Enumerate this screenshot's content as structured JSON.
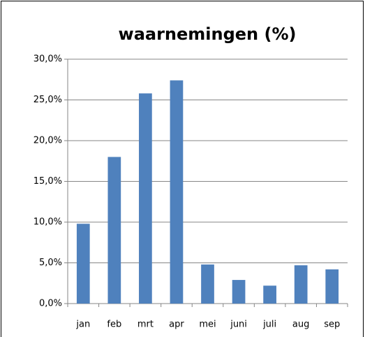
{
  "chart_data": {
    "type": "bar",
    "title": "waarnemingen (%)",
    "categories": [
      "jan",
      "feb",
      "mrt",
      "apr",
      "mei",
      "juni",
      "juli",
      "aug",
      "sep"
    ],
    "values": [
      9.8,
      18.0,
      25.8,
      27.4,
      4.8,
      2.9,
      2.2,
      4.7,
      4.2
    ],
    "color": "#4f81bd",
    "ylim": [
      0,
      30
    ],
    "yticks": [
      {
        "value": 0,
        "label": "0,0%"
      },
      {
        "value": 5,
        "label": "5,0%"
      },
      {
        "value": 10,
        "label": "10,0%"
      },
      {
        "value": 15,
        "label": "15,0%"
      },
      {
        "value": 20,
        "label": "20,0%"
      },
      {
        "value": 25,
        "label": "25,0%"
      },
      {
        "value": 30,
        "label": "30,0%"
      }
    ],
    "grid": true
  }
}
